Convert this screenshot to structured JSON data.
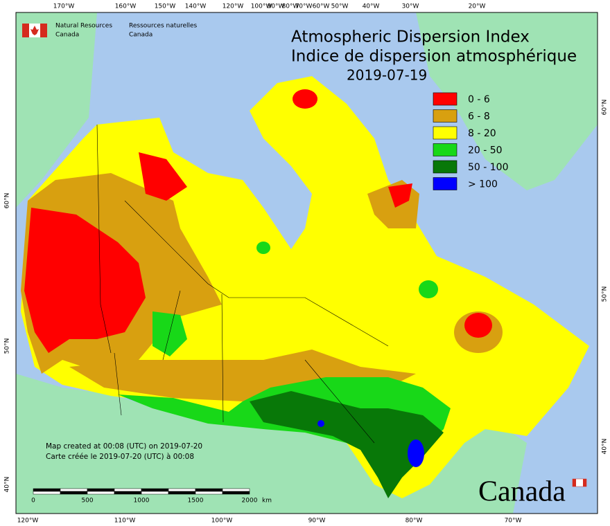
{
  "header": {
    "agency_en": "Natural Resources",
    "agency_en2": "Canada",
    "agency_fr": "Ressources naturelles",
    "agency_fr2": "Canada"
  },
  "title": "Atmospheric Dispersion Index",
  "subtitle": "Indice de dispersion atmosphérique",
  "date": "2019-07-19",
  "legend": [
    {
      "label": "0 - 6",
      "color": "#ff0000"
    },
    {
      "label": "6 - 8",
      "color": "#d8a010"
    },
    {
      "label": "8 - 20",
      "color": "#ffff00"
    },
    {
      "label": "20 - 50",
      "color": "#18d818"
    },
    {
      "label": "50 - 100",
      "color": "#087808"
    },
    {
      "label": "> 100",
      "color": "#0000ff"
    }
  ],
  "top_longitudes": [
    "170°W",
    "160°W",
    "150°W",
    "140°W",
    "120°W",
    "100°W",
    "90°W",
    "80°W",
    "70°W",
    "60°W",
    "50°W",
    "40°W",
    "30°W",
    "20°W"
  ],
  "bottom_longitudes": [
    "120°W",
    "110°W",
    "100°W",
    "90°W",
    "80°W",
    "70°W"
  ],
  "left_latitudes": [
    "60°N",
    "50°N",
    "40°N"
  ],
  "right_latitudes": [
    "60°N",
    "50°N",
    "40°N"
  ],
  "scale_bar": {
    "ticks": [
      "0",
      "500",
      "1000",
      "1500",
      "2000"
    ],
    "unit": "km"
  },
  "notes": [
    "Map created at 00:08 (UTC) on 2019-07-20",
    "Carte créée le 2019-07-20 (UTC) à 00:08"
  ],
  "wordmark": "Canada"
}
